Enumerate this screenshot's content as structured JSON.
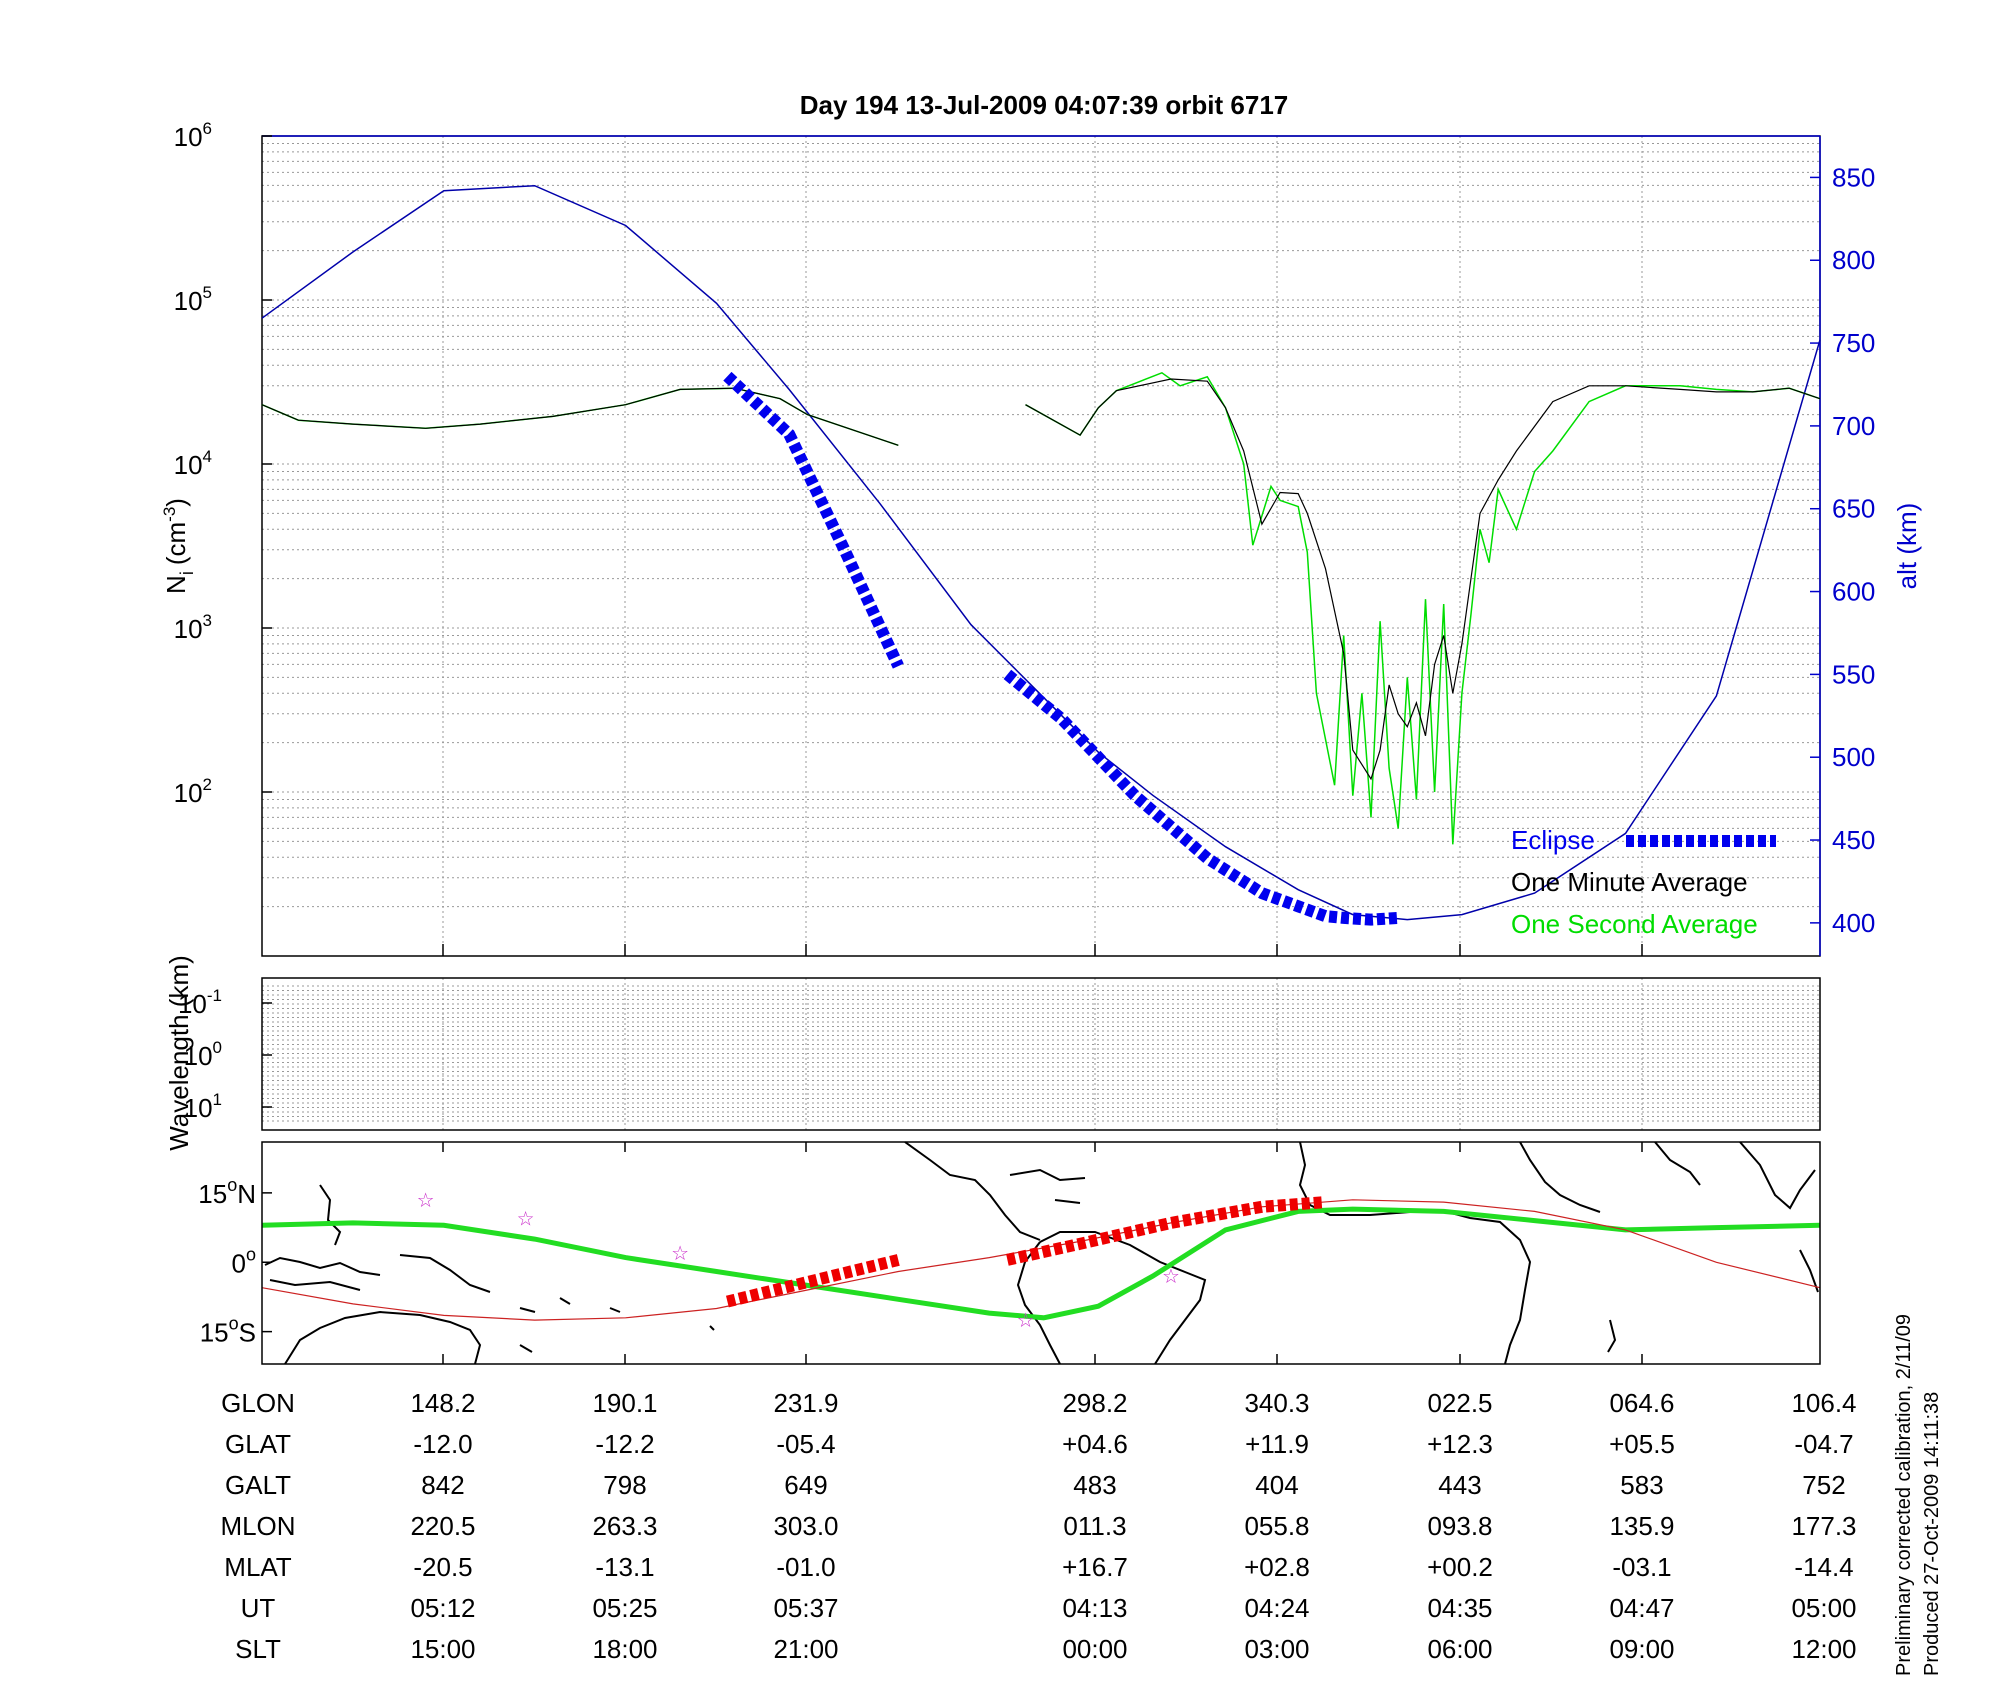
{
  "title": "Day 194  13-Jul-2009 04:07:39   orbit 6717",
  "footer": {
    "line1": "Preliminary corrected calibration, 2/11/09",
    "line2": "Produced 27-Oct-2009 14:11:38"
  },
  "colors": {
    "altitude": "#0000aa",
    "eclipse": "#0000ee",
    "one_minute": "#000000",
    "one_second": "#00dd00",
    "ground_track": "#22dd22",
    "magnetic_equator": "#cc2222",
    "map_eclipse": "#ee0000",
    "stars": "#cc33cc",
    "right_axis": "#0000cc"
  },
  "chart_data": [
    {
      "type": "line",
      "panel": "density",
      "ylabel_main": "N",
      "ylabel_sub": "i",
      "ylabel_unit": "(cm",
      "ylabel_exp": "-3",
      "ylabel_close": ")",
      "yscale": "log",
      "ylim": [
        10,
        1000000
      ],
      "yticks": [
        {
          "base": "10",
          "exp": "6",
          "value": 1000000
        },
        {
          "base": "10",
          "exp": "5",
          "value": 100000
        },
        {
          "base": "10",
          "exp": "4",
          "value": 10000
        },
        {
          "base": "10",
          "exp": "3",
          "value": 1000
        },
        {
          "base": "10",
          "exp": "2",
          "value": 100
        }
      ],
      "y2label": "alt (km)",
      "y2lim": [
        380,
        875
      ],
      "y2ticks": [
        "850",
        "800",
        "750",
        "700",
        "650",
        "600",
        "550",
        "500",
        "450",
        "400"
      ],
      "xlim": [
        0,
        8.57
      ],
      "grid": true,
      "legend": {
        "position": "bottom-right",
        "entries": [
          "Eclipse",
          "One Minute Average",
          "One Second Average"
        ]
      },
      "series": [
        {
          "name": "One Minute Average",
          "x": [
            0,
            0.2,
            0.5,
            0.9,
            1.2,
            1.6,
            2.0,
            2.3,
            2.6,
            2.85,
            3.0,
            3.5,
            4.2,
            4.5,
            4.6,
            4.7,
            5.0,
            5.2,
            5.3,
            5.4,
            5.5,
            5.6,
            5.7,
            5.75,
            5.85,
            5.95,
            6.0,
            6.1,
            6.15,
            6.2,
            6.25,
            6.3,
            6.35,
            6.4,
            6.45,
            6.5,
            6.55,
            6.6,
            6.7,
            6.8,
            6.9,
            7.1,
            7.3,
            7.5,
            7.8,
            8.0,
            8.2,
            8.4,
            8.57
          ],
          "y": [
            23000,
            18500,
            17500,
            16500,
            17500,
            19500,
            23000,
            28500,
            29000,
            25000,
            20000,
            13000,
            23000,
            15000,
            22000,
            28000,
            33000,
            32000,
            22000,
            12000,
            4300,
            6700,
            6600,
            5000,
            2300,
            700,
            180,
            120,
            180,
            450,
            300,
            250,
            350,
            220,
            600,
            900,
            400,
            800,
            5000,
            8000,
            12000,
            24000,
            30000,
            30000,
            28500,
            27500,
            27500,
            29000,
            25000
          ]
        },
        {
          "name": "One Second Average",
          "x": [
            0,
            0.2,
            0.5,
            0.9,
            1.2,
            1.6,
            2.0,
            2.3,
            2.6,
            2.85,
            3.0,
            3.5,
            4.2,
            4.5,
            4.6,
            4.7,
            4.95,
            5.05,
            5.2,
            5.3,
            5.4,
            5.45,
            5.55,
            5.6,
            5.7,
            5.75,
            5.8,
            5.9,
            5.95,
            6.0,
            6.05,
            6.1,
            6.15,
            6.2,
            6.25,
            6.3,
            6.35,
            6.4,
            6.45,
            6.5,
            6.55,
            6.6,
            6.65,
            6.7,
            6.75,
            6.8,
            6.9,
            7.0,
            7.1,
            7.3,
            7.5,
            7.8,
            8.0,
            8.2,
            8.4,
            8.57
          ],
          "y": [
            23000,
            18500,
            17500,
            16500,
            17500,
            19500,
            23000,
            28500,
            29000,
            25000,
            20000,
            13000,
            23000,
            15000,
            22000,
            28000,
            36000,
            30000,
            34000,
            22000,
            10000,
            3200,
            7300,
            6000,
            5500,
            2900,
            400,
            110,
            900,
            95,
            400,
            70,
            1100,
            140,
            60,
            500,
            90,
            1500,
            100,
            1400,
            48,
            400,
            1200,
            4000,
            2500,
            7000,
            4000,
            9000,
            12000,
            24000,
            30000,
            30000,
            28500,
            27500,
            29000,
            25000
          ]
        },
        {
          "name": "alt (km)",
          "axis": "right",
          "x": [
            0,
            0.5,
            1.0,
            1.5,
            2.0,
            2.5,
            2.9,
            3.4,
            3.9,
            4.4,
            4.6,
            4.9,
            5.3,
            5.7,
            6.0,
            6.3,
            6.6,
            7.0,
            7.5,
            8.0,
            8.57
          ],
          "y": [
            765,
            805,
            842,
            845,
            821,
            774,
            722,
            653,
            580,
            525,
            503,
            477,
            446,
            420,
            405,
            402,
            405,
            418,
            454,
            537,
            752
          ]
        },
        {
          "name": "Eclipse",
          "axis": "right",
          "segments": [
            {
              "x": [
                2.56,
                2.9,
                3.2,
                3.5
              ],
              "y": [
                730,
                695,
                626,
                555
              ]
            },
            {
              "x": [
                4.1,
                4.4,
                4.8,
                5.2,
                5.5,
                5.7,
                5.85,
                5.95,
                6.1,
                6.25
              ],
              "y": [
                550,
                523,
                477,
                439,
                418,
                410,
                404,
                403,
                402,
                403
              ]
            }
          ]
        }
      ]
    },
    {
      "type": "line",
      "panel": "wavelength",
      "ylabel": "Wavelength (km)",
      "yscale": "log",
      "yticks": [
        {
          "base": "10",
          "exp": "-1"
        },
        {
          "base": "10",
          "exp": "0"
        },
        {
          "base": "10",
          "exp": "1"
        }
      ],
      "grid": true,
      "series": []
    },
    {
      "type": "line",
      "panel": "map",
      "ylim": [
        -22,
        26
      ],
      "yticks": [
        {
          "value": "15",
          "hemi": "N",
          "lat": 15
        },
        {
          "value": "0",
          "hemi": "",
          "lat": 0
        },
        {
          "value": "15",
          "hemi": "S",
          "lat": -15
        }
      ],
      "series": [
        {
          "name": "ground_track",
          "x": [
            0,
            0.5,
            1.0,
            1.5,
            2.0,
            2.5,
            3.0,
            3.5,
            4.0,
            4.3,
            4.6,
            4.9,
            5.3,
            5.7,
            6.0,
            6.5,
            7.0,
            7.5,
            8.0,
            8.57
          ],
          "y": [
            8,
            8.5,
            8,
            5,
            1,
            -2,
            -5,
            -8,
            -11,
            -12,
            -9.5,
            -3,
            7,
            11,
            11.5,
            11,
            9,
            7,
            7.5,
            8
          ]
        },
        {
          "name": "magnetic_equator",
          "x": [
            0,
            0.5,
            1.0,
            1.5,
            2.0,
            2.5,
            3.0,
            3.5,
            4.0,
            4.5,
            5.0,
            5.5,
            6.0,
            6.5,
            7.0,
            7.5,
            8.0,
            8.57
          ],
          "y": [
            -5.5,
            -9,
            -11.5,
            -12.5,
            -12,
            -10,
            -6,
            -2,
            1,
            4.5,
            8.5,
            12,
            13.5,
            13,
            11,
            7,
            0,
            -5.5
          ]
        },
        {
          "name": "map_eclipse",
          "segments": [
            {
              "x": [
                2.56,
                3.5
              ],
              "y": [
                -8.5,
                0.5
              ]
            },
            {
              "x": [
                4.1,
                4.5,
                5.0,
                5.5,
                5.85
              ],
              "y": [
                0.5,
                4,
                8.5,
                12,
                13
              ]
            }
          ]
        },
        {
          "name": "stars",
          "x": [
            0.9,
            1.45,
            2.3,
            4.2,
            5.0
          ],
          "y": [
            13.5,
            9.5,
            2,
            -12.5,
            -3
          ]
        }
      ]
    }
  ],
  "table": {
    "rows": [
      {
        "label": "GLON",
        "values": [
          "148.2",
          "190.1",
          "231.9",
          "298.2",
          "340.3",
          "022.5",
          "064.6",
          "106.4"
        ]
      },
      {
        "label": "GLAT",
        "values": [
          "-12.0",
          "-12.2",
          "-05.4",
          "+04.6",
          "+11.9",
          "+12.3",
          "+05.5",
          "-04.7"
        ]
      },
      {
        "label": "GALT",
        "values": [
          "842",
          "798",
          "649",
          "483",
          "404",
          "443",
          "583",
          "752"
        ]
      },
      {
        "label": "MLON",
        "values": [
          "220.5",
          "263.3",
          "303.0",
          "011.3",
          "055.8",
          "093.8",
          "135.9",
          "177.3"
        ]
      },
      {
        "label": "MLAT",
        "values": [
          "-20.5",
          "-13.1",
          "-01.0",
          "+16.7",
          "+02.8",
          "+00.2",
          "-03.1",
          "-14.4"
        ]
      },
      {
        "label": "UT",
        "values": [
          "05:12",
          "05:25",
          "05:37",
          "04:13",
          "04:24",
          "04:35",
          "04:47",
          "05:00"
        ]
      },
      {
        "label": "SLT",
        "values": [
          "15:00",
          "18:00",
          "21:00",
          "00:00",
          "03:00",
          "06:00",
          "09:00",
          "12:00"
        ]
      }
    ]
  }
}
